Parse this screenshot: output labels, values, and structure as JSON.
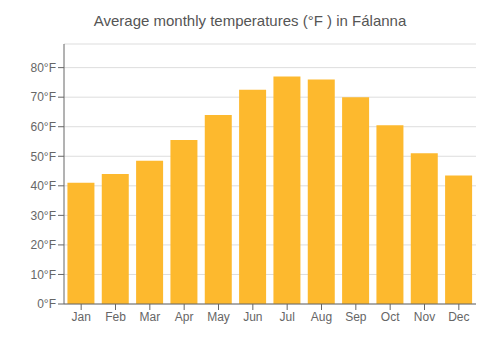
{
  "chart_data": {
    "type": "bar",
    "title": "Average monthly temperatures (°F ) in Fálanna",
    "categories": [
      "Jan",
      "Feb",
      "Mar",
      "Apr",
      "May",
      "Jun",
      "Jul",
      "Aug",
      "Sep",
      "Oct",
      "Nov",
      "Dec"
    ],
    "values": [
      41,
      44,
      48.5,
      55.5,
      64,
      72.5,
      77,
      76,
      70,
      60.5,
      51,
      43.5
    ],
    "color": "#FDB92E",
    "ylim": [
      0,
      88
    ],
    "yticks": [
      {
        "value": 0,
        "label": "0°F"
      },
      {
        "value": 10,
        "label": "10°F"
      },
      {
        "value": 20,
        "label": "20°F"
      },
      {
        "value": 30,
        "label": "30°F"
      },
      {
        "value": 40,
        "label": "40°F"
      },
      {
        "value": 50,
        "label": "50°F"
      },
      {
        "value": 60,
        "label": "60°F"
      },
      {
        "value": 70,
        "label": "70°F"
      },
      {
        "value": 80,
        "label": "80°F"
      }
    ],
    "grid": true
  }
}
